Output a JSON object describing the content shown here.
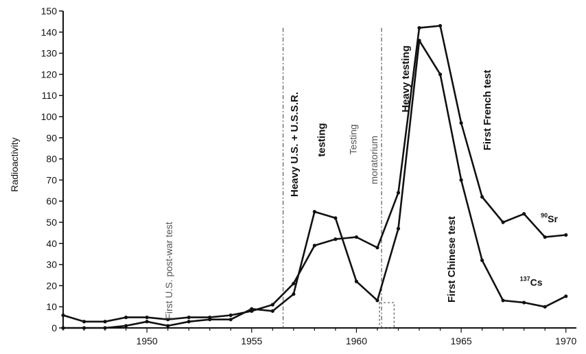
{
  "chart_data": {
    "type": "line",
    "title": "",
    "xlabel": "",
    "ylabel": "Radioactivity",
    "xlim": [
      1946,
      1970.5
    ],
    "ylim": [
      0,
      150
    ],
    "x_ticks": [
      {
        "value": 1950,
        "label": "1950"
      },
      {
        "value": 1955,
        "label": "1955"
      },
      {
        "value": 1960,
        "label": "1960"
      },
      {
        "value": 1965,
        "label": "1965"
      },
      {
        "value": 1970,
        "label": "1970"
      }
    ],
    "y_ticks": [
      {
        "value": 0,
        "label": "0"
      },
      {
        "value": 10,
        "label": "10"
      },
      {
        "value": 20,
        "label": "20"
      },
      {
        "value": 30,
        "label": "30"
      },
      {
        "value": 40,
        "label": "40"
      },
      {
        "value": 50,
        "label": "50"
      },
      {
        "value": 60,
        "label": "60"
      },
      {
        "value": 70,
        "label": "70"
      },
      {
        "value": 80,
        "label": "80"
      },
      {
        "value": 90,
        "label": "90"
      },
      {
        "value": 100,
        "label": "100"
      },
      {
        "value": 110,
        "label": "110"
      },
      {
        "value": 120,
        "label": "120"
      },
      {
        "value": 130,
        "label": "130"
      },
      {
        "value": 140,
        "label": "140"
      },
      {
        "value": 150,
        "label": "150"
      }
    ],
    "grid": false,
    "series": [
      {
        "name": "90Sr",
        "label_main": "Sr",
        "label_sup": "90",
        "x": [
          1946,
          1947,
          1948,
          1949,
          1950,
          1951,
          1952,
          1953,
          1954,
          1955,
          1956,
          1957,
          1958,
          1959,
          1960,
          1961,
          1962,
          1963,
          1964,
          1965,
          1966,
          1967,
          1968,
          1969,
          1970
        ],
        "values": [
          6,
          3,
          3,
          5,
          5,
          4,
          5,
          5,
          6,
          8,
          11,
          21,
          39,
          42,
          43,
          38,
          64,
          142,
          143,
          97,
          62,
          50,
          54,
          43,
          44
        ]
      },
      {
        "name": "137Cs",
        "label_main": "Cs",
        "label_sup": "137",
        "x": [
          1946,
          1947,
          1948,
          1949,
          1950,
          1951,
          1952,
          1953,
          1954,
          1955,
          1956,
          1957,
          1958,
          1959,
          1960,
          1961,
          1962,
          1963,
          1964,
          1965,
          1966,
          1967,
          1968,
          1969,
          1970
        ],
        "values": [
          0,
          0,
          0,
          1,
          3,
          1,
          3,
          4,
          4,
          9,
          8,
          16,
          55,
          52,
          22,
          13,
          47,
          136,
          120,
          70,
          32,
          13,
          12,
          10,
          15
        ]
      }
    ],
    "annotations": [
      {
        "text": "First U.S. post-war test",
        "x": 1951.2,
        "y": 4,
        "style": "light"
      },
      {
        "text": "Heavy U.S. + U.S.S.R.",
        "x": 1957.2,
        "y": 62,
        "style": "strong"
      },
      {
        "text": "testing",
        "x": 1958.5,
        "y": 81,
        "style": "strong"
      },
      {
        "text": "Testing",
        "x": 1960,
        "y": 82,
        "style": "light"
      },
      {
        "text": "moratorium",
        "x": 1961,
        "y": 68,
        "style": "light"
      },
      {
        "text": "Heavy testing",
        "x": 1962.5,
        "y": 102,
        "style": "strong"
      },
      {
        "text": "First Chinese test",
        "x": 1964.7,
        "y": 12,
        "style": "strong"
      },
      {
        "text": "First French test",
        "x": 1966.4,
        "y": 84,
        "style": "strong"
      }
    ]
  }
}
